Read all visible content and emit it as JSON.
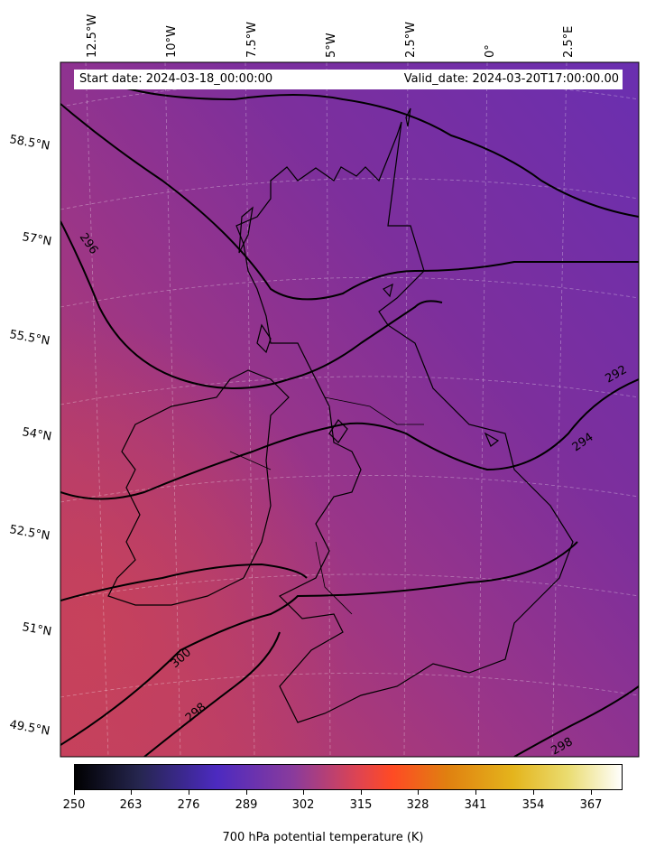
{
  "header": {
    "start_date": "Start date: 2024-03-18_00:00:00",
    "valid_date": "Valid_date: 2024-03-20T17:00:00.00"
  },
  "top_ticks": [
    "12.5°W",
    "10°W",
    "7.5°W",
    "5°W",
    "2.5°W",
    "0°",
    "2.5°E"
  ],
  "left_ticks": [
    "58.5°N",
    "57°N",
    "55.5°N",
    "54°N",
    "52.5°N",
    "51°N",
    "49.5°N"
  ],
  "contour_labels": [
    "296",
    "292",
    "294",
    "300",
    "298",
    "298"
  ],
  "colorbar": {
    "ticks": [
      "250",
      "263",
      "276",
      "289",
      "302",
      "315",
      "328",
      "341",
      "354",
      "367"
    ],
    "label": "700 hPa potential temperature (K)",
    "colormap": "CMRmap-like (black–blue–purple–red–orange–yellow–white)"
  },
  "colors": {
    "field_cold": "#6a2fa8",
    "field_mid": "#8a3294",
    "field_warm": "#bf3f62",
    "contour": "#000000"
  }
}
